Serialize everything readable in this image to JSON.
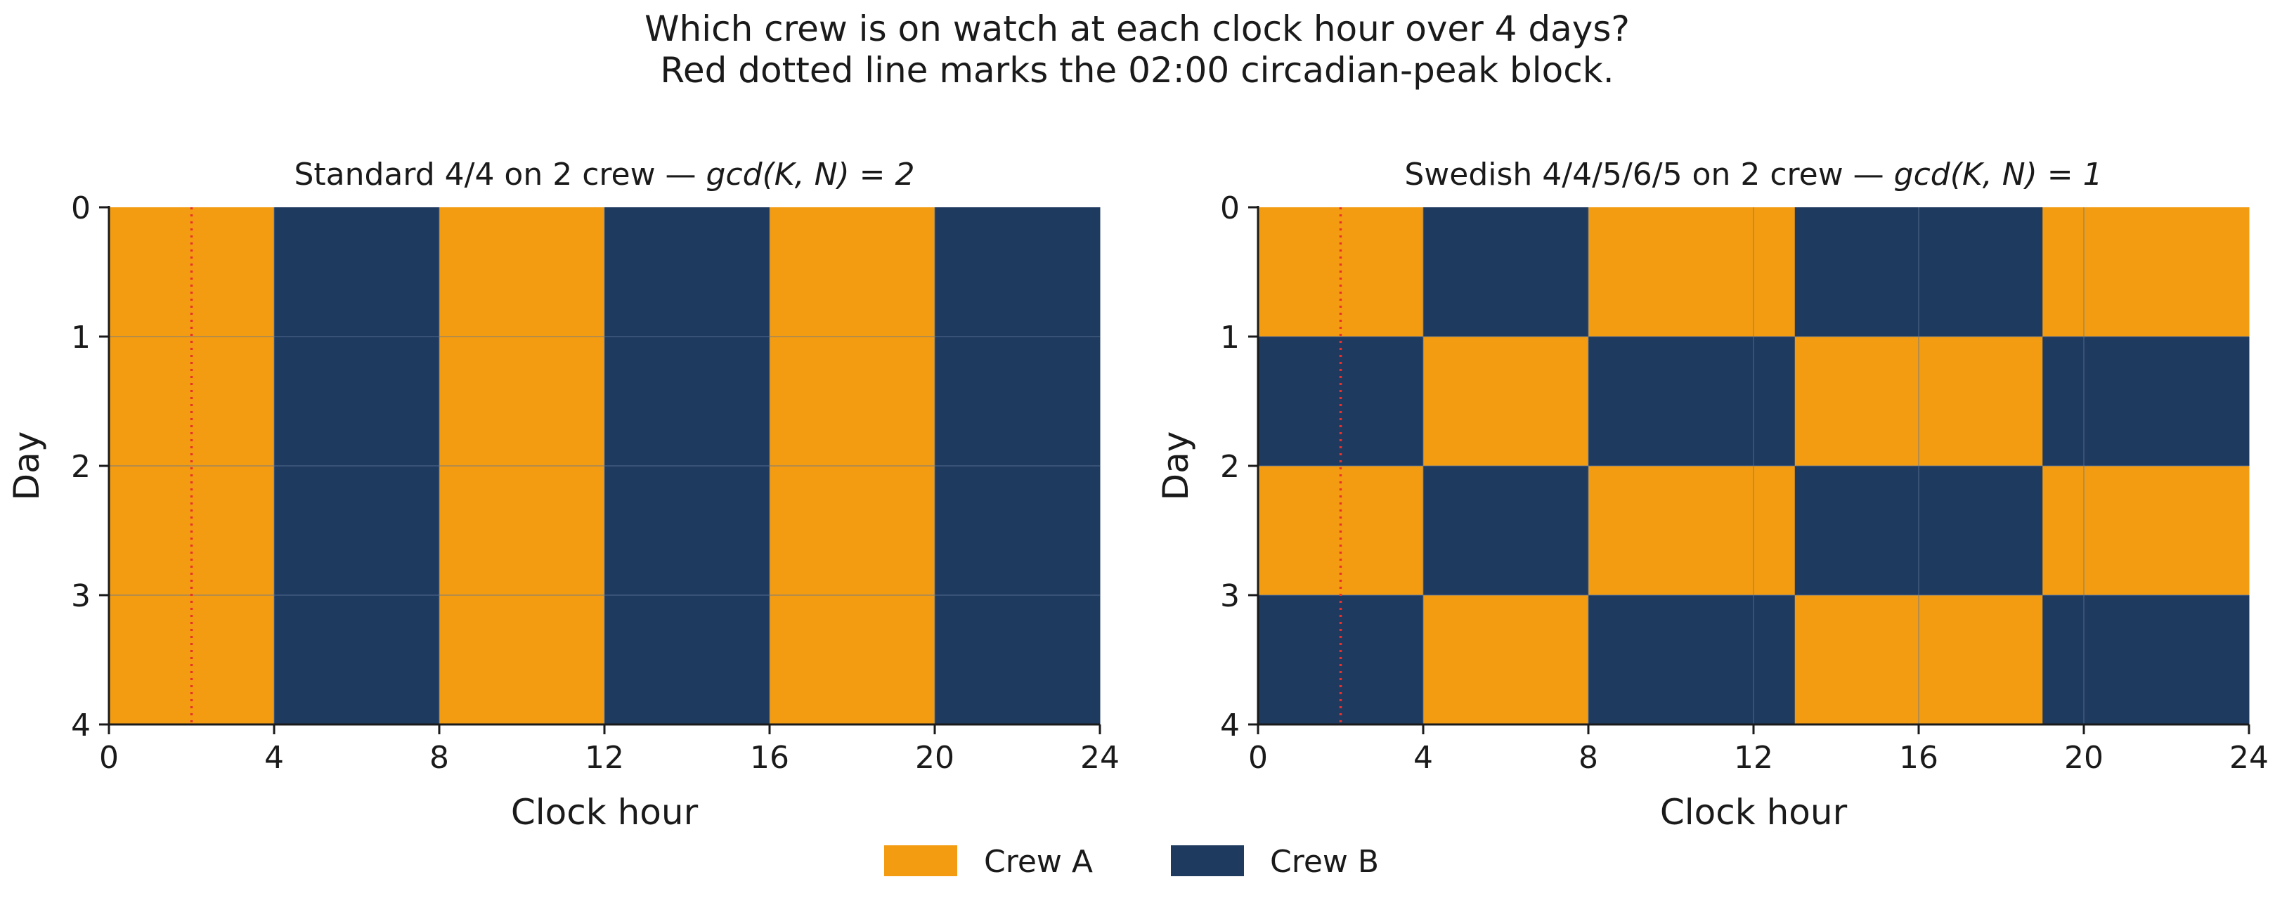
{
  "figure": {
    "title_line1": "Which crew is on watch at each clock hour over 4 days?",
    "title_line2": "Red dotted line marks the 02:00 circadian-peak block."
  },
  "colors": {
    "crew_a": "#F39C12",
    "crew_b": "#1F3A5F",
    "marker": "#E8322B",
    "axis": "#1a1a1a",
    "grid": "#5E7796"
  },
  "legend": {
    "placement": "bottom-center",
    "entries": [
      {
        "label": "Crew A",
        "color": "#F39C12"
      },
      {
        "label": "Crew B",
        "color": "#1F3A5F"
      }
    ]
  },
  "chart_data": [
    {
      "type": "heatmap",
      "title_prefix": "Standard 4/4 on 2 crew — ",
      "title_math": "gcd(K, N) = 2",
      "xlabel": "Clock hour",
      "ylabel": "Day",
      "xlim": [
        0,
        24
      ],
      "ylim": [
        0,
        4
      ],
      "y_inverted": true,
      "xticks": [
        0,
        4,
        8,
        12,
        16,
        20,
        24
      ],
      "yticks": [
        0,
        1,
        2,
        3,
        4
      ],
      "marker_hour": 2,
      "rows": [
        [
          {
            "start": 0,
            "end": 4,
            "crew": "A"
          },
          {
            "start": 4,
            "end": 8,
            "crew": "B"
          },
          {
            "start": 8,
            "end": 12,
            "crew": "A"
          },
          {
            "start": 12,
            "end": 16,
            "crew": "B"
          },
          {
            "start": 16,
            "end": 20,
            "crew": "A"
          },
          {
            "start": 20,
            "end": 24,
            "crew": "B"
          }
        ],
        [
          {
            "start": 0,
            "end": 4,
            "crew": "A"
          },
          {
            "start": 4,
            "end": 8,
            "crew": "B"
          },
          {
            "start": 8,
            "end": 12,
            "crew": "A"
          },
          {
            "start": 12,
            "end": 16,
            "crew": "B"
          },
          {
            "start": 16,
            "end": 20,
            "crew": "A"
          },
          {
            "start": 20,
            "end": 24,
            "crew": "B"
          }
        ],
        [
          {
            "start": 0,
            "end": 4,
            "crew": "A"
          },
          {
            "start": 4,
            "end": 8,
            "crew": "B"
          },
          {
            "start": 8,
            "end": 12,
            "crew": "A"
          },
          {
            "start": 12,
            "end": 16,
            "crew": "B"
          },
          {
            "start": 16,
            "end": 20,
            "crew": "A"
          },
          {
            "start": 20,
            "end": 24,
            "crew": "B"
          }
        ],
        [
          {
            "start": 0,
            "end": 4,
            "crew": "A"
          },
          {
            "start": 4,
            "end": 8,
            "crew": "B"
          },
          {
            "start": 8,
            "end": 12,
            "crew": "A"
          },
          {
            "start": 12,
            "end": 16,
            "crew": "B"
          },
          {
            "start": 16,
            "end": 20,
            "crew": "A"
          },
          {
            "start": 20,
            "end": 24,
            "crew": "B"
          }
        ]
      ]
    },
    {
      "type": "heatmap",
      "title_prefix": "Swedish 4/4/5/6/5 on 2 crew — ",
      "title_math": "gcd(K, N) = 1",
      "xlabel": "Clock hour",
      "ylabel": "Day",
      "xlim": [
        0,
        24
      ],
      "ylim": [
        0,
        4
      ],
      "y_inverted": true,
      "xticks": [
        0,
        4,
        8,
        12,
        16,
        20,
        24
      ],
      "yticks": [
        0,
        1,
        2,
        3,
        4
      ],
      "marker_hour": 2,
      "rows": [
        [
          {
            "start": 0,
            "end": 4,
            "crew": "A"
          },
          {
            "start": 4,
            "end": 8,
            "crew": "B"
          },
          {
            "start": 8,
            "end": 13,
            "crew": "A"
          },
          {
            "start": 13,
            "end": 19,
            "crew": "B"
          },
          {
            "start": 19,
            "end": 24,
            "crew": "A"
          }
        ],
        [
          {
            "start": 0,
            "end": 4,
            "crew": "B"
          },
          {
            "start": 4,
            "end": 8,
            "crew": "A"
          },
          {
            "start": 8,
            "end": 13,
            "crew": "B"
          },
          {
            "start": 13,
            "end": 19,
            "crew": "A"
          },
          {
            "start": 19,
            "end": 24,
            "crew": "B"
          }
        ],
        [
          {
            "start": 0,
            "end": 4,
            "crew": "A"
          },
          {
            "start": 4,
            "end": 8,
            "crew": "B"
          },
          {
            "start": 8,
            "end": 13,
            "crew": "A"
          },
          {
            "start": 13,
            "end": 19,
            "crew": "B"
          },
          {
            "start": 19,
            "end": 24,
            "crew": "A"
          }
        ],
        [
          {
            "start": 0,
            "end": 4,
            "crew": "B"
          },
          {
            "start": 4,
            "end": 8,
            "crew": "A"
          },
          {
            "start": 8,
            "end": 13,
            "crew": "B"
          },
          {
            "start": 13,
            "end": 19,
            "crew": "A"
          },
          {
            "start": 19,
            "end": 24,
            "crew": "B"
          }
        ]
      ]
    }
  ]
}
